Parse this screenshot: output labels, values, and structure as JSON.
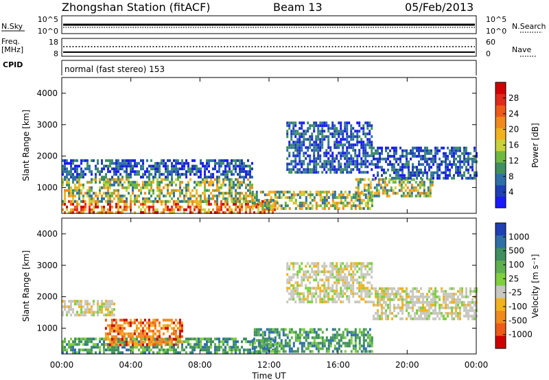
{
  "header": {
    "station": "Zhongshan Station (fitACF)",
    "beam": "Beam 13",
    "date": "05/Feb/2013"
  },
  "top_panel": {
    "left_labels": {
      "nsky": "N.Sky",
      "freq_line1": "Freq.",
      "freq_line2": "[MHz]",
      "cpid": "CPID"
    },
    "right_labels": {
      "nsearch": "N.Search",
      "nave": "Nave"
    },
    "noise_ticks_left": [
      "10^5",
      "10^0"
    ],
    "noise_ticks_right": [
      "10^5",
      "10^0"
    ],
    "freq_ticks": [
      "18",
      "8"
    ],
    "nave_ticks": [
      "60",
      "0"
    ],
    "cpid_text": "normal (fast stereo) 153"
  },
  "chart_data": [
    {
      "type": "heatmap",
      "panel": "power",
      "ylabel": "Slant Range [km]",
      "yticks": [
        "1000",
        "2000",
        "3000",
        "4000"
      ],
      "ylim": [
        180,
        4500
      ],
      "xlim_hours": [
        0,
        24
      ],
      "colorbar": {
        "label": "Power [dB]",
        "ticks": [
          "4",
          "8",
          "12",
          "16",
          "20",
          "24",
          "28"
        ],
        "colors": [
          "#1a1aff",
          "#1f3fb4",
          "#2f6fa8",
          "#3f8f5f",
          "#6fb83f",
          "#c8d23a",
          "#f2b21e",
          "#f08a1c",
          "#ee5a18",
          "#e02a1a",
          "#d00000"
        ]
      },
      "regions": [
        {
          "t": [
            0,
            12.5
          ],
          "r": [
            180,
            600
          ],
          "level": "high"
        },
        {
          "t": [
            0,
            11
          ],
          "r": [
            600,
            1300
          ],
          "level": "mid"
        },
        {
          "t": [
            0,
            11
          ],
          "r": [
            1300,
            1900
          ],
          "level": "low"
        },
        {
          "t": [
            11,
            18
          ],
          "r": [
            300,
            900
          ],
          "level": "mid"
        },
        {
          "t": [
            13,
            18
          ],
          "r": [
            1500,
            3100
          ],
          "level": "low"
        },
        {
          "t": [
            17,
            21.5
          ],
          "r": [
            700,
            1300
          ],
          "level": "mid"
        },
        {
          "t": [
            18,
            24
          ],
          "r": [
            1300,
            2300
          ],
          "level": "low"
        }
      ]
    },
    {
      "type": "heatmap",
      "panel": "velocity",
      "ylabel": "Slant Range [km]",
      "yticks": [
        "1000",
        "2000",
        "3000",
        "4000"
      ],
      "ylim": [
        180,
        4500
      ],
      "xlabel": "Time UT",
      "xticks": [
        "00:00",
        "04:00",
        "08:00",
        "12:00",
        "16:00",
        "20:00",
        "00:00"
      ],
      "xlim_hours": [
        0,
        24
      ],
      "colorbar": {
        "label": "Velocity [m s⁻¹]",
        "ticks": [
          "1000",
          "500",
          "100",
          "25",
          "-25",
          "-100",
          "-500",
          "-1000"
        ],
        "colors": [
          "#1f3fb4",
          "#2f6fa8",
          "#3f8f5f",
          "#5fb04f",
          "#7fcf3f",
          "#c8c8c0",
          "#f2b21e",
          "#f08a1c",
          "#ee5a18",
          "#d00000"
        ]
      },
      "regions": [
        {
          "t": [
            0,
            12.5
          ],
          "r": [
            180,
            700
          ],
          "level": "green"
        },
        {
          "t": [
            2.5,
            7
          ],
          "r": [
            500,
            1300
          ],
          "level": "orange"
        },
        {
          "t": [
            0,
            3
          ],
          "r": [
            1400,
            1900
          ],
          "level": "grey"
        },
        {
          "t": [
            11,
            18
          ],
          "r": [
            300,
            1000
          ],
          "level": "green"
        },
        {
          "t": [
            13,
            18
          ],
          "r": [
            1800,
            3100
          ],
          "level": "grey"
        },
        {
          "t": [
            18,
            24
          ],
          "r": [
            1300,
            2300
          ],
          "level": "grey"
        }
      ]
    }
  ]
}
